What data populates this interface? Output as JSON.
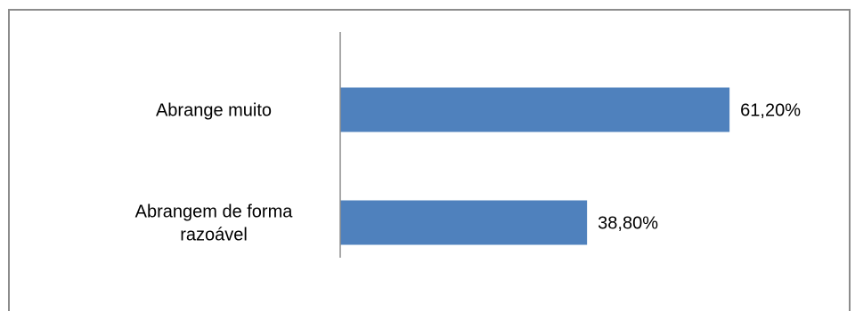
{
  "chart_data": {
    "type": "bar",
    "orientation": "horizontal",
    "categories": [
      "Abrange muito",
      "Abrangem de forma razoável"
    ],
    "category_lines": [
      [
        "Abrange muito"
      ],
      [
        "Abrangem de forma",
        "razoável"
      ]
    ],
    "values": [
      61.2,
      38.8
    ],
    "value_labels": [
      "61,20%",
      "38,80%"
    ],
    "unit": "%",
    "xlim": [
      0,
      70
    ],
    "grid": false,
    "legend": "none",
    "bar_color": "#4f81bd",
    "title": "",
    "xlabel": "",
    "ylabel": ""
  }
}
